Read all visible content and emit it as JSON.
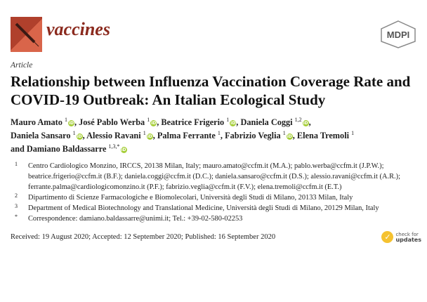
{
  "header": {
    "journal": "vaccines",
    "publisher_logo": "MDPI",
    "journal_logo_icon": "syringe-icon"
  },
  "article_type": "Article",
  "title": "Relationship between Influenza Vaccination Coverage Rate and COVID-19 Outbreak: An Italian Ecological Study",
  "authors": [
    {
      "name": "Mauro Amato",
      "sup": "1",
      "orcid": true,
      "sep": ", "
    },
    {
      "name": "José Pablo Werba",
      "sup": "1",
      "orcid": true,
      "sep": ", "
    },
    {
      "name": "Beatrice Frigerio",
      "sup": "1",
      "orcid": true,
      "sep": ", "
    },
    {
      "name": "Daniela Coggi",
      "sup": "1,2",
      "orcid": true,
      "sep": ", "
    },
    {
      "name": "Daniela Sansaro",
      "sup": "1",
      "orcid": true,
      "sep": ", "
    },
    {
      "name": "Alessio Ravani",
      "sup": "1",
      "orcid": true,
      "sep": ", "
    },
    {
      "name": "Palma Ferrante",
      "sup": "1",
      "orcid": false,
      "sep": ", "
    },
    {
      "name": "Fabrizio Veglia",
      "sup": "1",
      "orcid": true,
      "sep": ", "
    },
    {
      "name": "Elena Tremoli",
      "sup": "1",
      "orcid": false,
      "sep": " and "
    },
    {
      "name": "Damiano Baldassarre",
      "sup": "1,3,*",
      "orcid": true,
      "sep": ""
    }
  ],
  "affiliations": [
    {
      "num": "1",
      "text": "Centro Cardiologico Monzino, IRCCS, 20138 Milan, Italy; mauro.amato@ccfm.it (M.A.); pablo.werba@ccfm.it (J.P.W.); beatrice.frigerio@ccfm.it (B.F.); daniela.coggi@ccfm.it (D.C.); daniela.sansaro@ccfm.it (D.S.); alessio.ravani@ccfm.it (A.R.); ferrante.palma@cardiologicomonzino.it (P.F.); fabrizio.veglia@ccfm.it (F.V.); elena.tremoli@ccfm.it (E.T.)"
    },
    {
      "num": "2",
      "text": "Dipartimento di Scienze Farmacologiche e Biomolecolari, Università degli Studi di Milano, 20133 Milan, Italy"
    },
    {
      "num": "3",
      "text": "Department of Medical Biotechnology and Translational Medicine, Università degli Studi di Milano, 20129 Milan, Italy"
    },
    {
      "num": "*",
      "text": "Correspondence: damiano.baldassarre@unimi.it; Tel.: +39-02-580-02253"
    }
  ],
  "dates": "Received: 19 August 2020; Accepted: 12 September 2020; Published: 16 September 2020",
  "check_updates": {
    "line1": "check for",
    "line2": "updates"
  },
  "colors": {
    "journal": "#8b2a1e",
    "orcid": "#a6ce39",
    "check_updates": "#f5c230"
  }
}
